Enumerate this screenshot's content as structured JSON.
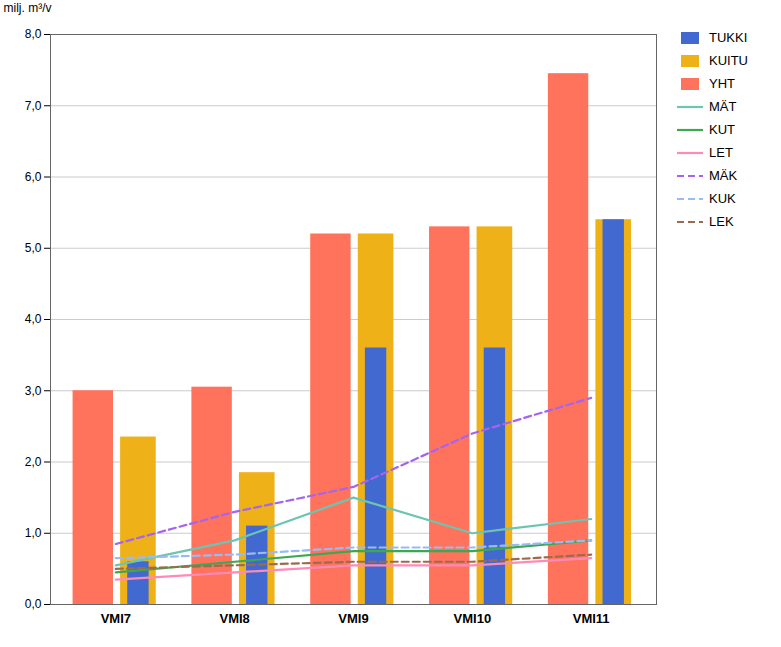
{
  "chart_data": {
    "type": "bar",
    "categories": [
      "VMI7",
      "VMI8",
      "VMI9",
      "VMI10",
      "VMI11"
    ],
    "series": [
      {
        "name": "TUKKI",
        "type": "bar",
        "values": [
          0.6,
          1.1,
          3.6,
          3.6,
          5.4
        ]
      },
      {
        "name": "KUITU",
        "type": "bar",
        "values": [
          2.35,
          1.85,
          5.2,
          5.3,
          5.4
        ]
      },
      {
        "name": "YHT",
        "type": "bar",
        "values": [
          3.0,
          3.05,
          5.2,
          5.3,
          7.45
        ]
      },
      {
        "name": "MÄT",
        "type": "line",
        "line_style": "solid",
        "values": [
          0.55,
          0.9,
          1.5,
          1.0,
          1.2
        ]
      },
      {
        "name": "KUT",
        "type": "line",
        "line_style": "solid",
        "values": [
          0.45,
          0.6,
          0.75,
          0.75,
          0.9
        ]
      },
      {
        "name": "LET",
        "type": "line",
        "line_style": "solid",
        "values": [
          0.35,
          0.45,
          0.55,
          0.55,
          0.65
        ]
      },
      {
        "name": "MÄK",
        "type": "line",
        "line_style": "dashed",
        "values": [
          0.85,
          1.3,
          1.65,
          2.4,
          2.9
        ]
      },
      {
        "name": "KUK",
        "type": "line",
        "line_style": "dashed",
        "values": [
          0.65,
          0.7,
          0.8,
          0.8,
          0.9
        ]
      },
      {
        "name": "LEK",
        "type": "line",
        "line_style": "dashed",
        "values": [
          0.5,
          0.55,
          0.6,
          0.6,
          0.7
        ]
      }
    ],
    "ylabel": "milj. m³/v",
    "ylim": [
      0.0,
      8.0
    ],
    "yticks": [
      {
        "value": 0.0,
        "label": "0,0"
      },
      {
        "value": 1.0,
        "label": "1,0"
      },
      {
        "value": 2.0,
        "label": "2,0"
      },
      {
        "value": 3.0,
        "label": "3,0"
      },
      {
        "value": 4.0,
        "label": "4,0"
      },
      {
        "value": 5.0,
        "label": "5,0"
      },
      {
        "value": 6.0,
        "label": "6,0"
      },
      {
        "value": 7.0,
        "label": "7,0"
      },
      {
        "value": 8.0,
        "label": "8,0"
      }
    ],
    "grid": true,
    "legend": "right"
  }
}
